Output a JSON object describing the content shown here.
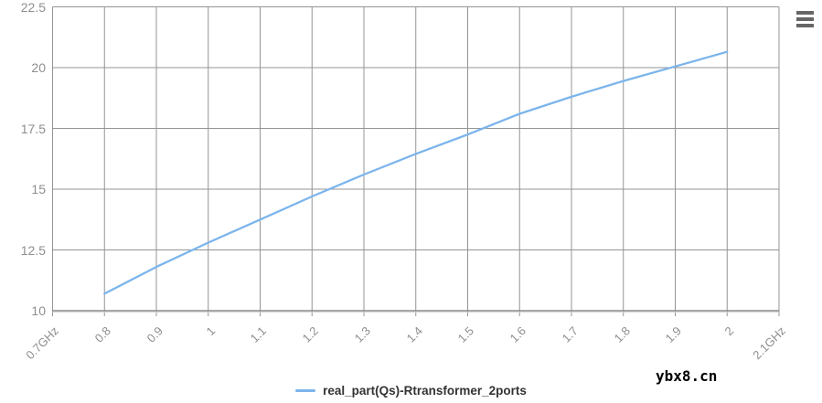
{
  "chart_data": {
    "type": "line",
    "title": "",
    "xlabel": "",
    "ylabel": "",
    "xlim": [
      0.7,
      2.1
    ],
    "ylim": [
      10,
      22.5
    ],
    "grid": true,
    "legend_position": "bottom-center",
    "x_tick_values": [
      0.7,
      0.8,
      0.9,
      1.0,
      1.1,
      1.2,
      1.3,
      1.4,
      1.5,
      1.6,
      1.7,
      1.8,
      1.9,
      2.0,
      2.1
    ],
    "x_tick_labels": [
      "0.7GHz",
      "0.8",
      "0.9",
      "1",
      "1.1",
      "1.2",
      "1.3",
      "1.4",
      "1.5",
      "1.6",
      "1.7",
      "1.8",
      "1.9",
      "2",
      "2.1GHz"
    ],
    "y_tick_values": [
      10,
      12.5,
      15,
      17.5,
      20,
      22.5
    ],
    "y_tick_labels": [
      "10",
      "12.5",
      "15",
      "17.5",
      "20",
      "22.5"
    ],
    "x": [
      0.8,
      0.9,
      1.0,
      1.1,
      1.2,
      1.3,
      1.4,
      1.5,
      1.6,
      1.7,
      1.8,
      1.9,
      2.0
    ],
    "series": [
      {
        "name": "real_part(Qs)-Rtransformer_2ports",
        "values": [
          10.7,
          11.8,
          12.8,
          13.75,
          14.7,
          15.6,
          16.45,
          17.25,
          18.1,
          18.8,
          19.45,
          20.05,
          20.65
        ]
      }
    ],
    "colors": {
      "line": "#7cb5ec",
      "grid": "#949494",
      "axis_line": "#8a8a8a",
      "axis_label": "#8e8e8e",
      "legend_text": "#333333"
    }
  },
  "legend": {
    "label": "real_part(Qs)-Rtransformer_2ports"
  },
  "watermark": {
    "text": "ybx8.cn"
  },
  "menu": {
    "icon": "hamburger-icon"
  }
}
